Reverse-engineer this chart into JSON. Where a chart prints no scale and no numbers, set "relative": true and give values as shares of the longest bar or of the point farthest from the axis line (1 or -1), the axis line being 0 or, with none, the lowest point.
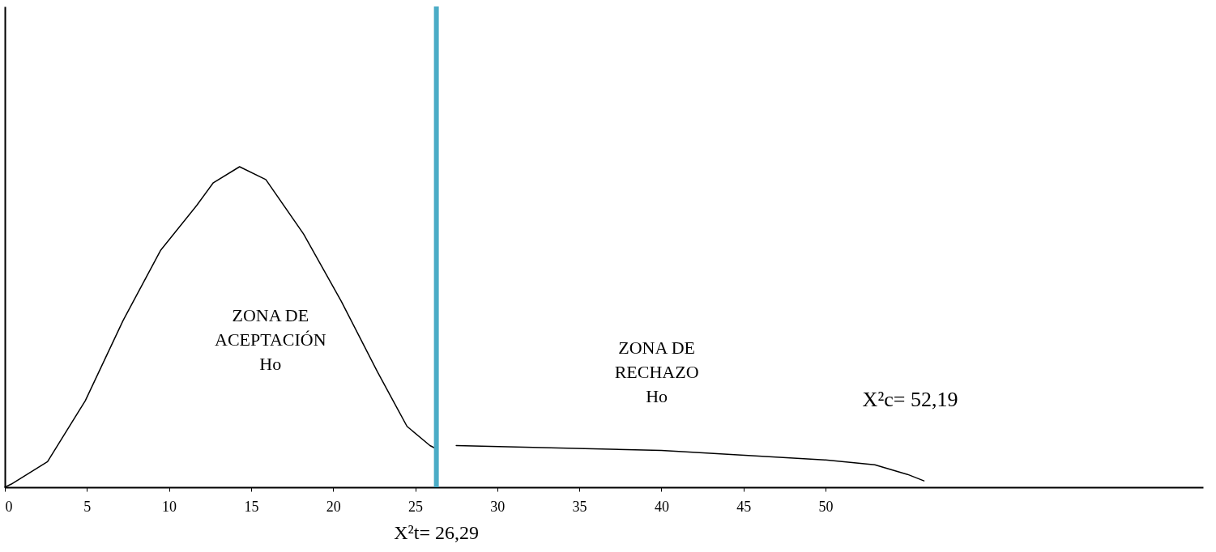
{
  "chart_data": {
    "type": "line",
    "relative": true,
    "tick_labels": "x",
    "grid": false,
    "xlim": [
      0,
      73
    ],
    "xticks": [
      0,
      5,
      10,
      15,
      20,
      25,
      30,
      35,
      40,
      45,
      50
    ],
    "series": [
      {
        "color": "#000000",
        "x": [
          0,
          0.4,
          2.6,
          4.9,
          7.2,
          9.5,
          11.7,
          12.7,
          14.3,
          15.9,
          18.2,
          20.5,
          22.7,
          24.5,
          25.9,
          26.29
        ],
        "values": [
          0,
          0.01,
          0.08,
          0.27,
          0.52,
          0.74,
          0.88,
          0.95,
          1.0,
          0.96,
          0.79,
          0.58,
          0.36,
          0.19,
          0.13,
          0.12
        ]
      },
      {
        "color": "#000000",
        "x": [
          27.5,
          40,
          50,
          53,
          55,
          56
        ],
        "values": [
          0.13,
          0.115,
          0.085,
          0.07,
          0.04,
          0.02
        ]
      }
    ],
    "ref_lines": [
      {
        "axis": "x",
        "value": 26.29,
        "label": "X²t= 26,29",
        "color": "#4bacc6"
      }
    ],
    "annotations": [
      "ZONA DE\nACEPTACIÓN\nHo",
      "ZONA DE\nRECHAZO\nHo",
      "X²c= 52,19"
    ]
  }
}
